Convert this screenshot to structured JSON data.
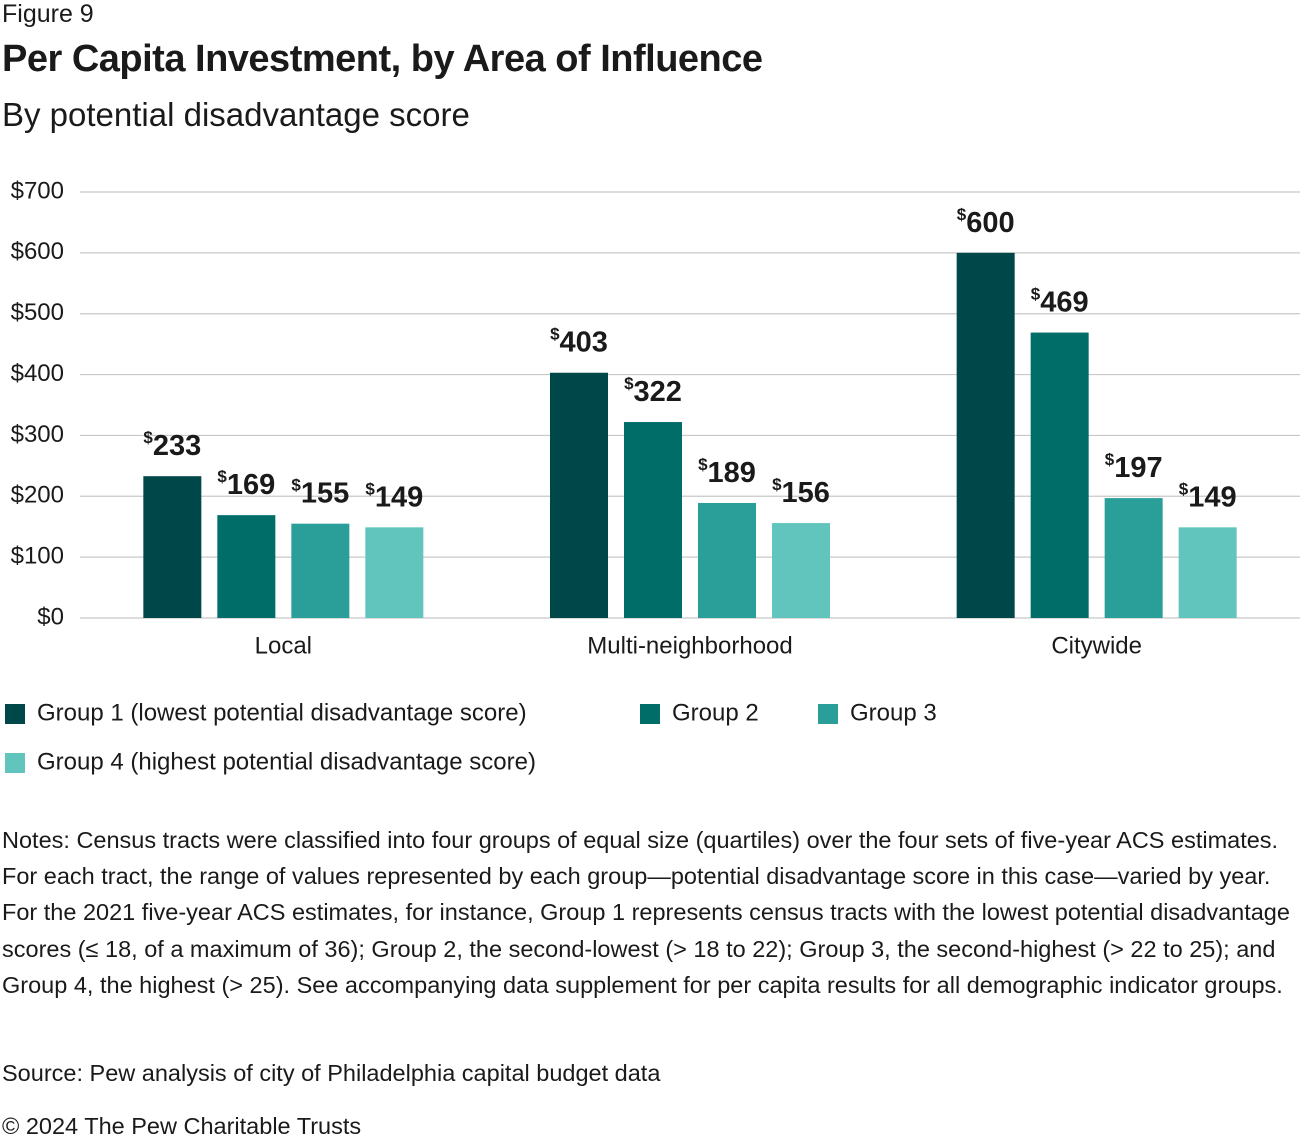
{
  "chart_data": {
    "type": "bar",
    "figure_label": "Figure 9",
    "title": "Per Capita Investment, by Area of Influence",
    "subtitle": "By potential disadvantage score",
    "categories": [
      "Local",
      "Multi-neighborhood",
      "Citywide"
    ],
    "series": [
      {
        "name": "Group 1 (lowest potential disadvantage score)",
        "color": "#00474a",
        "values": [
          233,
          403,
          600
        ],
        "value_labels": [
          "$233",
          "$403",
          "$600"
        ]
      },
      {
        "name": "Group 2",
        "color": "#006d69",
        "values": [
          169,
          322,
          469
        ],
        "value_labels": [
          "$169",
          "$322",
          "$469"
        ]
      },
      {
        "name": "Group 3",
        "color": "#2a9e98",
        "values": [
          155,
          189,
          197
        ],
        "value_labels": [
          "$155",
          "$189",
          "$197"
        ]
      },
      {
        "name": "Group 4 (highest potential disadvantage score)",
        "color": "#62c5bd",
        "values": [
          149,
          156,
          149
        ],
        "value_labels": [
          "$149",
          "$156",
          "$149"
        ]
      }
    ],
    "ylim": [
      0,
      700
    ],
    "yticks": [
      {
        "value": 0,
        "label": "$0"
      },
      {
        "value": 100,
        "label": "$100"
      },
      {
        "value": 200,
        "label": "$200"
      },
      {
        "value": 300,
        "label": "$300"
      },
      {
        "value": 400,
        "label": "$400"
      },
      {
        "value": 500,
        "label": "$500"
      },
      {
        "value": 600,
        "label": "$600"
      },
      {
        "value": 700,
        "label": "$700"
      }
    ],
    "grid": true,
    "legend": "bottom",
    "notes": "Notes: Census tracts were classified into four groups of equal size (quartiles) over the four sets of five-year ACS estimates. For each tract, the range of values represented by each group—potential disadvantage score in this case—varied by year. For the 2021 five-year ACS estimates, for instance, Group 1 represents census tracts with the lowest potential disadvantage scores (≤ 18, of a maximum of 36); Group 2, the second-lowest (> 18 to 22); Group 3, the second-highest (> 22 to 25); and Group 4, the highest (> 25). See accompanying data supplement for per capita results for all demographic indicator groups.",
    "source": "Source: Pew analysis of city of Philadelphia capital budget data",
    "copyright": "© 2024 The Pew Charitable Trusts"
  }
}
